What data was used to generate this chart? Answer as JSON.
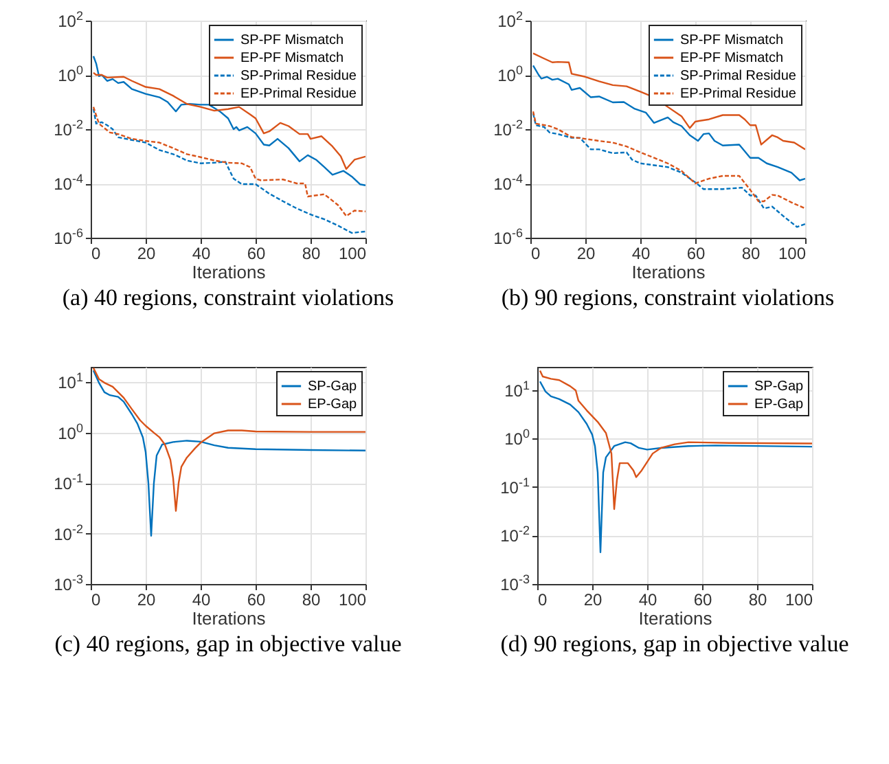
{
  "chart_data": [
    {
      "type": "line",
      "title": "(a) 40 regions, constraint violations",
      "xlabel": "Iterations",
      "xlim": [
        0,
        100
      ],
      "xticks": [
        0,
        20,
        40,
        60,
        80,
        100
      ],
      "ylim": [
        1e-06,
        100
      ],
      "yticks": [
        {
          "value": 1e-06,
          "label": "10$^{-6}$"
        },
        {
          "value": 0.0001,
          "label": "10$^{-4}$"
        },
        {
          "value": 0.01,
          "label": "10$^{-2}$"
        },
        {
          "value": 1,
          "label": "10$^{0}$"
        },
        {
          "value": 100,
          "label": "10$^{2}$"
        }
      ],
      "log": "y",
      "grid": true,
      "legend": "top right",
      "series": [
        {
          "name": "SP-PF Mismatch",
          "color": "#0072bd",
          "line_style": "solid",
          "x": [
            1,
            2,
            3,
            4,
            6,
            8,
            10,
            12,
            15,
            20,
            25,
            28,
            31,
            33,
            36,
            40,
            43,
            47,
            50,
            52,
            53,
            54,
            57,
            60,
            63,
            65,
            68,
            72,
            76,
            79,
            82,
            85,
            88,
            92,
            95,
            98,
            100
          ],
          "values": [
            4.9,
            2.6,
            0.9,
            1.0,
            0.6,
            0.7,
            0.5,
            0.55,
            0.3,
            0.2,
            0.15,
            0.1,
            0.045,
            0.08,
            0.085,
            0.08,
            0.08,
            0.045,
            0.025,
            0.01,
            0.012,
            0.009,
            0.012,
            0.007,
            0.0027,
            0.0025,
            0.0044,
            0.002,
            0.00065,
            0.0011,
            0.00075,
            0.0004,
            0.00021,
            0.00029,
            0.00018,
            9.3e-05,
            8.5e-05
          ]
        },
        {
          "name": "EP-PF Mismatch",
          "color": "#d95319",
          "line_style": "solid",
          "x": [
            1,
            2,
            4,
            6,
            12,
            15,
            20,
            25,
            30,
            35,
            40,
            45,
            50,
            54,
            58,
            60,
            63,
            65,
            69,
            72,
            76,
            79,
            80,
            84,
            88,
            91,
            93,
            96,
            100
          ],
          "values": [
            1.2,
            1.0,
            1.0,
            0.8,
            0.85,
            0.6,
            0.36,
            0.3,
            0.17,
            0.085,
            0.066,
            0.048,
            0.055,
            0.066,
            0.035,
            0.025,
            0.007,
            0.0083,
            0.017,
            0.013,
            0.0066,
            0.0066,
            0.0044,
            0.0055,
            0.0023,
            0.001,
            0.00034,
            0.00075,
            0.00098
          ]
        },
        {
          "name": "SP-Primal Residue",
          "color": "#0072bd",
          "line_style": "dashed",
          "x": [
            1,
            2,
            4,
            6,
            8,
            10,
            15,
            20,
            25,
            30,
            32,
            35,
            40,
            45,
            49,
            52,
            55,
            60,
            65,
            70,
            75,
            80,
            85,
            90,
            95,
            100
          ],
          "values": [
            0.056,
            0.016,
            0.018,
            0.014,
            0.01,
            0.005,
            0.004,
            0.0032,
            0.0017,
            0.0012,
            0.00098,
            0.0007,
            0.00055,
            0.00058,
            0.00063,
            0.00015,
            9.4e-05,
            9.4e-05,
            4.2e-05,
            2.2e-05,
            1.2e-05,
            7.2e-06,
            4.8e-06,
            2.8e-06,
            1.5e-06,
            1.7e-06
          ]
        },
        {
          "name": "EP-Primal Residue",
          "color": "#d95319",
          "line_style": "dashed",
          "x": [
            1,
            3,
            5,
            7,
            10,
            15,
            20,
            25,
            30,
            35,
            40,
            45,
            50,
            55,
            58,
            60,
            62,
            70,
            75,
            78,
            79,
            85,
            90,
            93,
            96,
            100
          ],
          "values": [
            0.066,
            0.016,
            0.011,
            0.0075,
            0.0066,
            0.0044,
            0.0037,
            0.0032,
            0.002,
            0.0012,
            0.00093,
            0.0007,
            0.00058,
            0.00055,
            0.0004,
            0.00015,
            0.00013,
            0.00014,
            0.0001,
            0.0001,
            3.3e-05,
            4e-05,
            1.6e-05,
            6.3e-06,
            1e-05,
            9.3e-06
          ]
        }
      ]
    },
    {
      "type": "line",
      "title": "(b) 90 regions, constraint violations",
      "xlabel": "Iterations",
      "xlim": [
        0,
        100
      ],
      "xticks": [
        0,
        20,
        40,
        60,
        80,
        100
      ],
      "ylim": [
        1e-06,
        100
      ],
      "yticks": [
        {
          "value": 1e-06,
          "label": "10$^{-6}$"
        },
        {
          "value": 0.0001,
          "label": "10$^{-4}$"
        },
        {
          "value": 0.01,
          "label": "10$^{-2}$"
        },
        {
          "value": 1,
          "label": "10$^{0}$"
        },
        {
          "value": 100,
          "label": "10$^{2}$"
        }
      ],
      "log": "y",
      "grid": true,
      "legend": "top right",
      "series": [
        {
          "name": "SP-PF Mismatch",
          "color": "#0072bd",
          "line_style": "solid",
          "x": [
            1,
            3,
            4,
            6,
            8,
            10,
            14,
            15,
            18,
            22,
            25,
            30,
            34,
            38,
            42,
            45,
            50,
            52,
            55,
            58,
            61,
            63,
            65,
            67,
            70,
            76,
            80,
            83,
            86,
            90,
            95,
            98,
            100
          ],
          "values": [
            2.2,
            1.0,
            0.73,
            0.85,
            0.66,
            0.72,
            0.45,
            0.28,
            0.33,
            0.15,
            0.16,
            0.097,
            0.1,
            0.056,
            0.041,
            0.017,
            0.027,
            0.018,
            0.013,
            0.006,
            0.0037,
            0.0066,
            0.007,
            0.0037,
            0.0025,
            0.0027,
            0.00088,
            0.00088,
            0.00055,
            0.0004,
            0.00025,
            0.00013,
            0.00015
          ]
        },
        {
          "name": "EP-PF Mismatch",
          "color": "#d95319",
          "line_style": "solid",
          "x": [
            1,
            5,
            8,
            10,
            14,
            15,
            20,
            25,
            30,
            35,
            40,
            45,
            50,
            55,
            58,
            60,
            65,
            70,
            76,
            78,
            80,
            82,
            84,
            88,
            90,
            92,
            96,
            100
          ],
          "values": [
            6.2,
            4.0,
            2.9,
            3.0,
            2.9,
            1.1,
            0.85,
            0.58,
            0.42,
            0.38,
            0.24,
            0.15,
            0.066,
            0.03,
            0.011,
            0.019,
            0.023,
            0.033,
            0.033,
            0.023,
            0.014,
            0.014,
            0.0027,
            0.006,
            0.005,
            0.0037,
            0.0032,
            0.0018
          ]
        },
        {
          "name": "SP-Primal Residue",
          "color": "#0072bd",
          "line_style": "dashed",
          "x": [
            1,
            2,
            5,
            7,
            10,
            15,
            18,
            22,
            25,
            30,
            35,
            37,
            40,
            45,
            50,
            55,
            60,
            63,
            70,
            77,
            80,
            82,
            85,
            88,
            92,
            97,
            100
          ],
          "values": [
            0.038,
            0.014,
            0.012,
            0.0075,
            0.0066,
            0.0048,
            0.0048,
            0.0018,
            0.0018,
            0.0013,
            0.0014,
            0.00075,
            0.00055,
            0.00047,
            0.0004,
            0.00025,
            0.00011,
            6.2e-05,
            6.2e-05,
            7e-05,
            3.6e-05,
            3.6e-05,
            1.2e-05,
            1.4e-05,
            6.3e-06,
            2.5e-06,
            3.2e-06
          ]
        },
        {
          "name": "EP-Primal Residue",
          "color": "#d95319",
          "line_style": "dashed",
          "x": [
            1,
            2,
            7,
            10,
            15,
            20,
            25,
            30,
            35,
            40,
            45,
            50,
            55,
            60,
            65,
            70,
            76,
            80,
            83,
            85,
            88,
            90,
            95,
            100
          ],
          "values": [
            0.045,
            0.016,
            0.013,
            0.01,
            0.0051,
            0.0044,
            0.0037,
            0.0032,
            0.0023,
            0.0014,
            0.00088,
            0.00055,
            0.00029,
            0.0001,
            0.00015,
            0.00019,
            0.00019,
            5.8e-05,
            2.2e-05,
            2.2e-05,
            3.8e-05,
            3.6e-05,
            2e-05,
            1.2e-05
          ]
        }
      ]
    },
    {
      "type": "line",
      "title": "(c) 40 regions, gap in objective value",
      "xlabel": "Iterations",
      "xlim": [
        0,
        100
      ],
      "xticks": [
        0,
        20,
        40,
        60,
        80,
        100
      ],
      "ylim": [
        0.001,
        20
      ],
      "yticks": [
        {
          "value": 0.001,
          "label": "10$^{-3}$"
        },
        {
          "value": 0.01,
          "label": "10$^{-2}$"
        },
        {
          "value": 0.1,
          "label": "10$^{-1}$"
        },
        {
          "value": 1,
          "label": "10$^{0}$"
        },
        {
          "value": 10,
          "label": "10$^{1}$"
        }
      ],
      "log": "y",
      "grid": true,
      "legend": "top right",
      "series": [
        {
          "name": "SP-Gap",
          "color": "#0072bd",
          "line_style": "solid",
          "x": [
            1,
            3,
            5,
            7,
            10,
            12,
            15,
            17,
            19,
            20,
            21,
            22,
            23,
            24,
            26,
            30,
            35,
            40,
            45,
            50,
            60,
            80,
            100
          ],
          "values": [
            17,
            9.7,
            6.3,
            5.5,
            5.1,
            4.1,
            2.3,
            1.5,
            0.8,
            0.41,
            0.1,
            0.009,
            0.1,
            0.35,
            0.58,
            0.65,
            0.69,
            0.66,
            0.56,
            0.5,
            0.47,
            0.45,
            0.44
          ]
        },
        {
          "name": "EP-Gap",
          "color": "#d95319",
          "line_style": "solid",
          "x": [
            1,
            3,
            5,
            8,
            12,
            15,
            18,
            20,
            23,
            25,
            27,
            29,
            30,
            31,
            32,
            33,
            35,
            38,
            40,
            45,
            50,
            55,
            60,
            80,
            100
          ],
          "values": [
            19,
            11.5,
            9.7,
            8.1,
            4.9,
            2.9,
            1.75,
            1.36,
            0.99,
            0.81,
            0.58,
            0.29,
            0.125,
            0.028,
            0.1,
            0.21,
            0.32,
            0.49,
            0.63,
            0.97,
            1.1,
            1.1,
            1.05,
            1.03,
            1.03
          ]
        }
      ]
    },
    {
      "type": "line",
      "title": "(d) 90 regions, gap in objective value",
      "xlabel": "Iterations",
      "xlim": [
        0,
        100
      ],
      "xticks": [
        0,
        20,
        40,
        60,
        80,
        100
      ],
      "ylim": [
        0.001,
        30
      ],
      "yticks": [
        {
          "value": 0.001,
          "label": "10$^{-3}$"
        },
        {
          "value": 0.01,
          "label": "10$^{-2}$"
        },
        {
          "value": 0.1,
          "label": "10$^{-1}$"
        },
        {
          "value": 1,
          "label": "10$^{0}$"
        },
        {
          "value": 10,
          "label": "10$^{1}$"
        }
      ],
      "log": "y",
      "grid": true,
      "legend": "top right",
      "series": [
        {
          "name": "SP-Gap",
          "color": "#0072bd",
          "line_style": "solid",
          "x": [
            1,
            3,
            5,
            8,
            12,
            15,
            18,
            20,
            21,
            22,
            23,
            24,
            25,
            28,
            32,
            34,
            37,
            40,
            45,
            55,
            65,
            100
          ],
          "values": [
            15,
            9.3,
            7.4,
            6.5,
            5,
            3.5,
            2.0,
            1.2,
            0.7,
            0.2,
            0.0045,
            0.2,
            0.41,
            0.7,
            0.84,
            0.8,
            0.64,
            0.59,
            0.64,
            0.7,
            0.72,
            0.68
          ]
        },
        {
          "name": "EP-Gap",
          "color": "#d95319",
          "line_style": "solid",
          "x": [
            1,
            2,
            5,
            8,
            12,
            14,
            15,
            18,
            22,
            25,
            27,
            28,
            29,
            30,
            33,
            35,
            36,
            38,
            42,
            45,
            50,
            55,
            70,
            100
          ],
          "values": [
            25,
            19,
            17,
            16,
            12,
            9.8,
            6,
            3.8,
            2.2,
            1.3,
            0.49,
            0.035,
            0.14,
            0.31,
            0.31,
            0.22,
            0.16,
            0.22,
            0.49,
            0.64,
            0.76,
            0.84,
            0.81,
            0.79
          ]
        }
      ]
    }
  ]
}
